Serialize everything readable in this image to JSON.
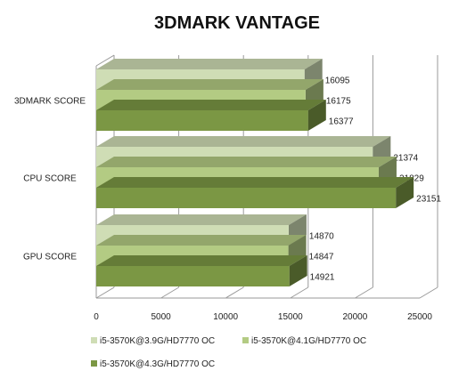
{
  "chart_data": {
    "type": "bar",
    "orientation": "horizontal",
    "three_d": true,
    "title": "3DMARK VANTAGE",
    "categories": [
      "3DMARK SCORE",
      "CPU SCORE",
      "GPU SCORE"
    ],
    "series": [
      {
        "name": "i5-3570K@3.9G/HD7770 OC",
        "color": "#cfddb5",
        "values": [
          16095,
          21374,
          14870
        ]
      },
      {
        "name": "i5-3570K@4.1G/HD7770 OC",
        "color": "#b3cb83",
        "values": [
          16175,
          21829,
          14847
        ]
      },
      {
        "name": "i5-3570K@4.3G/HD7770 OC",
        "color": "#7b9744",
        "values": [
          16377,
          23151,
          14921
        ]
      }
    ],
    "xlim": [
      0,
      25000
    ],
    "xticks": [
      0,
      5000,
      10000,
      15000,
      20000,
      25000
    ],
    "grid": true,
    "legend_position": "bottom"
  }
}
